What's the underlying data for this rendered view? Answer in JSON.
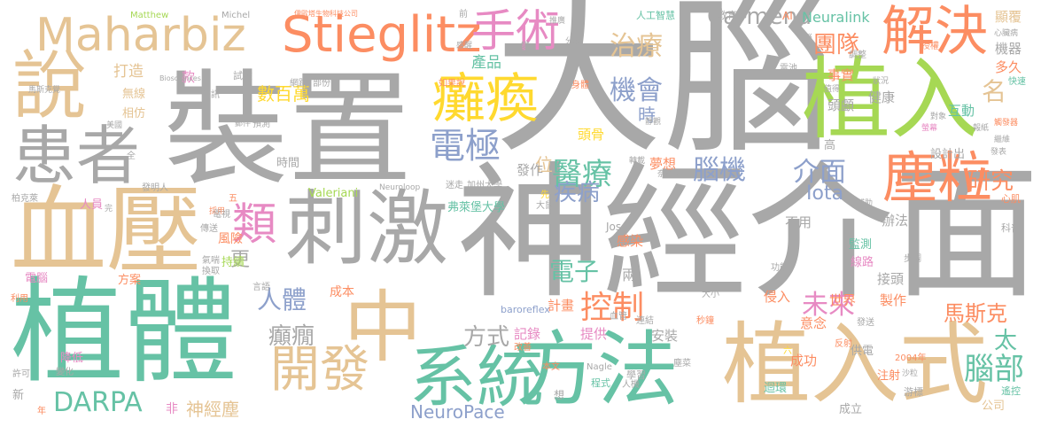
{
  "palette": {
    "gray": "#a8a8a8",
    "green": "#66c2a5",
    "orange": "#fc8d62",
    "blue": "#8da0cb",
    "pink": "#e78ac3",
    "lime": "#a6d854",
    "yellow": "#ffd92f",
    "tan": "#e5c494"
  },
  "words": [
    {
      "text": "大腦",
      "color": "gray",
      "weight": 10
    },
    {
      "text": "裝置",
      "color": "gray",
      "weight": 10
    },
    {
      "text": "神經介面",
      "color": "gray",
      "weight": 10
    },
    {
      "text": "植體",
      "color": "green",
      "weight": 9
    },
    {
      "text": "植入",
      "color": "lime",
      "weight": 8
    },
    {
      "text": "刺激",
      "color": "gray",
      "weight": 8
    },
    {
      "text": "血壓",
      "color": "tan",
      "weight": 8
    },
    {
      "text": "植入式",
      "color": "tan",
      "weight": 8
    },
    {
      "text": "方法",
      "color": "green",
      "weight": 7
    },
    {
      "text": "中",
      "color": "tan",
      "weight": 7
    },
    {
      "text": "系統",
      "color": "green",
      "weight": 7
    },
    {
      "text": "說",
      "color": "tan",
      "weight": 7
    },
    {
      "text": "患者",
      "color": "gray",
      "weight": 6
    },
    {
      "text": "Stieglitz",
      "color": "orange",
      "weight": 6
    },
    {
      "text": "Maharbiz",
      "color": "tan",
      "weight": 6
    },
    {
      "text": "解決",
      "color": "orange",
      "weight": 6
    },
    {
      "text": "塵粒",
      "color": "orange",
      "weight": 6
    },
    {
      "text": "癱瘓",
      "color": "yellow",
      "weight": 5
    },
    {
      "text": "開發",
      "color": "tan",
      "weight": 5
    },
    {
      "text": "類",
      "color": "pink",
      "weight": 5
    },
    {
      "text": "手術",
      "color": "pink",
      "weight": 5
    },
    {
      "text": "電極",
      "color": "blue",
      "weight": 5
    },
    {
      "text": "醫療",
      "color": "green",
      "weight": 4
    },
    {
      "text": "DARPA",
      "color": "green",
      "weight": 4
    },
    {
      "text": "腦部",
      "color": "green",
      "weight": 4
    },
    {
      "text": "機會",
      "color": "blue",
      "weight": 4
    },
    {
      "text": "腦機",
      "color": "blue",
      "weight": 4
    },
    {
      "text": "控制",
      "color": "orange",
      "weight": 4
    },
    {
      "text": "未來",
      "color": "pink",
      "weight": 4
    },
    {
      "text": "介面",
      "color": "blue",
      "weight": 4
    },
    {
      "text": "治療",
      "color": "tan",
      "weight": 4
    },
    {
      "text": "團隊",
      "color": "orange",
      "weight": 4
    },
    {
      "text": "研究",
      "color": "orange",
      "weight": 4
    },
    {
      "text": "疾病",
      "color": "blue",
      "weight": 4
    },
    {
      "text": "電子",
      "color": "green",
      "weight": 4
    },
    {
      "text": "人體",
      "color": "blue",
      "weight": 4
    },
    {
      "text": "癲癇",
      "color": "gray",
      "weight": 4
    },
    {
      "text": "方式",
      "color": "gray",
      "weight": 4
    },
    {
      "text": "Carmena",
      "color": "gray",
      "weight": 3
    },
    {
      "text": "名",
      "color": "tan",
      "weight": 4
    },
    {
      "text": "馬斯克",
      "color": "orange",
      "weight": 3
    },
    {
      "text": "太",
      "color": "green",
      "weight": 4
    },
    {
      "text": "Iota",
      "color": "blue",
      "weight": 3
    },
    {
      "text": "Neuralink",
      "color": "green",
      "weight": 3
    },
    {
      "text": "NeuroPace",
      "color": "blue",
      "weight": 3
    },
    {
      "text": "神經塵",
      "color": "tan",
      "weight": 3
    },
    {
      "text": "時",
      "color": "blue",
      "weight": 3
    },
    {
      "text": "數百萬",
      "color": "yellow",
      "weight": 3
    },
    {
      "text": "位",
      "color": "tan",
      "weight": 3
    },
    {
      "text": "打造",
      "color": "tan",
      "weight": 2
    },
    {
      "text": "產品",
      "color": "green",
      "weight": 2
    },
    {
      "text": "夢想",
      "color": "orange",
      "weight": 2
    },
    {
      "text": "頭骨",
      "color": "yellow",
      "weight": 2
    },
    {
      "text": "發作",
      "color": "gray",
      "weight": 2
    },
    {
      "text": "記錄",
      "color": "pink",
      "weight": 2
    },
    {
      "text": "提供",
      "color": "pink",
      "weight": 2
    },
    {
      "text": "計畫",
      "color": "orange",
      "weight": 2
    },
    {
      "text": "兩",
      "color": "gray",
      "weight": 2
    },
    {
      "text": "感染",
      "color": "orange",
      "weight": 2
    },
    {
      "text": "安裝",
      "color": "gray",
      "weight": 2
    },
    {
      "text": "成功",
      "color": "orange",
      "weight": 2
    },
    {
      "text": "世界",
      "color": "orange",
      "weight": 2
    },
    {
      "text": "製作",
      "color": "orange",
      "weight": 2
    },
    {
      "text": "侵入",
      "color": "orange",
      "weight": 2
    },
    {
      "text": "意念",
      "color": "orange",
      "weight": 2
    },
    {
      "text": "接頭",
      "color": "gray",
      "weight": 2
    },
    {
      "text": "辦法",
      "color": "gray",
      "weight": 2
    },
    {
      "text": "不用",
      "color": "gray",
      "weight": 2
    },
    {
      "text": "健康",
      "color": "gray",
      "weight": 2
    },
    {
      "text": "互動",
      "color": "green",
      "weight": 2
    },
    {
      "text": "事實",
      "color": "orange",
      "weight": 2
    },
    {
      "text": "機器",
      "color": "gray",
      "weight": 2
    },
    {
      "text": "顯覆",
      "color": "tan",
      "weight": 2
    },
    {
      "text": "多久",
      "color": "orange",
      "weight": 2
    },
    {
      "text": "頭顱",
      "color": "gray",
      "weight": 2
    },
    {
      "text": "設計出",
      "color": "gray",
      "weight": 2
    },
    {
      "text": "成本",
      "color": "orange",
      "weight": 2
    },
    {
      "text": "更",
      "color": "gray",
      "weight": 2
    },
    {
      "text": "時間",
      "color": "gray",
      "weight": 2
    },
    {
      "text": "風險",
      "color": "orange",
      "weight": 2
    },
    {
      "text": "持續",
      "color": "lime",
      "weight": 2
    },
    {
      "text": "方案",
      "color": "orange",
      "weight": 2
    },
    {
      "text": "無線",
      "color": "tan",
      "weight": 2
    },
    {
      "text": "相仿",
      "color": "tan",
      "weight": 2
    },
    {
      "text": "人員",
      "color": "pink",
      "weight": 2
    },
    {
      "text": "電腦",
      "color": "pink",
      "weight": 2
    },
    {
      "text": "降低",
      "color": "pink",
      "weight": 2
    },
    {
      "text": "弗萊堡大學",
      "color": "green",
      "weight": 2
    },
    {
      "text": "Valeriani",
      "color": "lime",
      "weight": 2
    },
    {
      "text": "注射",
      "color": "orange",
      "weight": 2
    },
    {
      "text": "監測",
      "color": "green",
      "weight": 2
    },
    {
      "text": "線路",
      "color": "pink",
      "weight": 2
    },
    {
      "text": "迴環",
      "color": "green",
      "weight": 2
    },
    {
      "text": "供電",
      "color": "gray",
      "weight": 2
    },
    {
      "text": "公司",
      "color": "tan",
      "weight": 2
    },
    {
      "text": "成立",
      "color": "gray",
      "weight": 2
    },
    {
      "text": "遙控",
      "color": "green",
      "weight": 2
    },
    {
      "text": "游標",
      "color": "gray",
      "weight": 2
    },
    {
      "text": "心肌",
      "color": "orange",
      "weight": 2
    },
    {
      "text": "科普",
      "color": "gray",
      "weight": 2
    },
    {
      "text": "學習",
      "color": "gray",
      "weight": 2
    },
    {
      "text": "程式",
      "color": "green",
      "weight": 2
    },
    {
      "text": "Jose",
      "color": "gray",
      "weight": 2
    },
    {
      "text": "非",
      "color": "pink",
      "weight": 2
    },
    {
      "text": "發明人",
      "color": "gray",
      "weight": 1
    },
    {
      "text": "款",
      "color": "pink",
      "weight": 2
    },
    {
      "text": "全",
      "color": "gray",
      "weight": 1
    },
    {
      "text": "五",
      "color": "orange",
      "weight": 1
    },
    {
      "text": "試驗",
      "color": "gray",
      "weight": 1
    },
    {
      "text": "人工智慧",
      "color": "green",
      "weight": 1
    },
    {
      "text": "教育部",
      "color": "gray",
      "weight": 1
    },
    {
      "text": "AI",
      "color": "orange",
      "weight": 1
    },
    {
      "text": "資訊",
      "color": "gray",
      "weight": 1
    },
    {
      "text": "預測",
      "color": "gray",
      "weight": 1
    },
    {
      "text": "郵件",
      "color": "gray",
      "weight": 1
    },
    {
      "text": "美國",
      "color": "gray",
      "weight": 1
    },
    {
      "text": "加州大學",
      "color": "gray",
      "weight": 1
    },
    {
      "text": "迷走",
      "color": "gray",
      "weight": 1
    },
    {
      "text": "Neuroloop",
      "color": "gray",
      "weight": 1
    },
    {
      "text": "奈格爾",
      "color": "gray",
      "weight": 1
    },
    {
      "text": "大鼠",
      "color": "gray",
      "weight": 1
    },
    {
      "text": "馬斯克覺",
      "color": "gray",
      "weight": 1
    },
    {
      "text": "柏克萊",
      "color": "gray",
      "weight": 1
    },
    {
      "text": "Matthew",
      "color": "lime",
      "weight": 1
    },
    {
      "text": "Michel",
      "color": "gray",
      "weight": 1
    },
    {
      "text": "伊歐塔生物科技公司",
      "color": "orange",
      "weight": 1
    },
    {
      "text": "Biosciences",
      "color": "gray",
      "weight": 1
    },
    {
      "text": "網路",
      "color": "gray",
      "weight": 1
    },
    {
      "text": "部份",
      "color": "gray",
      "weight": 1
    },
    {
      "text": "如果說",
      "color": "orange",
      "weight": 1
    },
    {
      "text": "推廣",
      "color": "gray",
      "weight": 1
    },
    {
      "text": "分校",
      "color": "gray",
      "weight": 1
    },
    {
      "text": "感醒",
      "color": "gray",
      "weight": 1
    },
    {
      "text": "變",
      "color": "gray",
      "weight": 1
    },
    {
      "text": "前",
      "color": "gray",
      "weight": 1
    },
    {
      "text": "身體",
      "color": "orange",
      "weight": 1
    },
    {
      "text": "電池",
      "color": "gray",
      "weight": 1
    },
    {
      "text": "調整",
      "color": "gray",
      "weight": 1
    },
    {
      "text": "授權",
      "color": "orange",
      "weight": 1
    },
    {
      "text": "心臟病",
      "color": "gray",
      "weight": 1
    },
    {
      "text": "快速",
      "color": "green",
      "weight": 1
    },
    {
      "text": "狀況",
      "color": "gray",
      "weight": 1
    },
    {
      "text": "值得",
      "color": "gray",
      "weight": 1
    },
    {
      "text": "對象",
      "color": "gray",
      "weight": 1
    },
    {
      "text": "螢幕",
      "color": "pink",
      "weight": 1
    },
    {
      "text": "報紙",
      "color": "gray",
      "weight": 1
    },
    {
      "text": "觸發器",
      "color": "orange",
      "weight": 1
    },
    {
      "text": "繼維",
      "color": "gray",
      "weight": 1
    },
    {
      "text": "發表",
      "color": "gray",
      "weight": 1
    },
    {
      "text": "靜觀",
      "color": "gray",
      "weight": 1
    },
    {
      "text": "轉載",
      "color": "gray",
      "weight": 1
    },
    {
      "text": "採用",
      "color": "orange",
      "weight": 1
    },
    {
      "text": "電視",
      "color": "gray",
      "weight": 1
    },
    {
      "text": "傳送",
      "color": "gray",
      "weight": 1
    },
    {
      "text": "氣喘",
      "color": "gray",
      "weight": 1
    },
    {
      "text": "換取",
      "color": "gray",
      "weight": 1
    },
    {
      "text": "言語",
      "color": "gray",
      "weight": 1
    },
    {
      "text": "利用",
      "color": "orange",
      "weight": 1
    },
    {
      "text": "許可",
      "color": "gray",
      "weight": 1
    },
    {
      "text": "變化",
      "color": "gray",
      "weight": 1
    },
    {
      "text": "新",
      "color": "gray",
      "weight": 1
    },
    {
      "text": "年",
      "color": "orange",
      "weight": 1
    },
    {
      "text": "baroreflex",
      "color": "blue",
      "weight": 1
    },
    {
      "text": "Nagle",
      "color": "gray",
      "weight": 1
    },
    {
      "text": "血管",
      "color": "gray",
      "weight": 1
    },
    {
      "text": "連結",
      "color": "gray",
      "weight": 1
    },
    {
      "text": "秒鐘",
      "color": "orange",
      "weight": 1
    },
    {
      "text": "人機",
      "color": "gray",
      "weight": 1
    },
    {
      "text": "本文",
      "color": "orange",
      "weight": 1
    },
    {
      "text": "改善",
      "color": "orange",
      "weight": 1
    },
    {
      "text": "大小",
      "color": "gray",
      "weight": 1
    },
    {
      "text": "功能",
      "color": "gray",
      "weight": 1
    },
    {
      "text": "反射",
      "color": "orange",
      "weight": 1
    },
    {
      "text": "發送",
      "color": "gray",
      "weight": 1
    },
    {
      "text": "步調",
      "color": "gray",
      "weight": 1
    },
    {
      "text": "2004年",
      "color": "orange",
      "weight": 1
    },
    {
      "text": "沙粒",
      "color": "gray",
      "weight": 1
    },
    {
      "text": "補助",
      "color": "gray",
      "weight": 1
    },
    {
      "text": "先",
      "color": "yellow",
      "weight": 1
    },
    {
      "text": "想",
      "color": "gray",
      "weight": 1
    },
    {
      "text": "塵菜",
      "color": "gray",
      "weight": 1
    },
    {
      "text": "六",
      "color": "yellow",
      "weight": 1
    },
    {
      "text": "完",
      "color": "gray",
      "weight": 1
    },
    {
      "text": "高",
      "color": "gray",
      "weight": 1
    },
    {
      "text": "腦",
      "color": "gray",
      "weight": 1
    }
  ]
}
